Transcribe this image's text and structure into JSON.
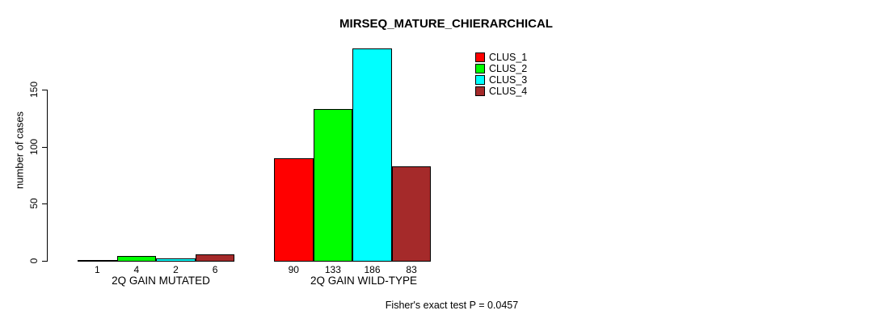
{
  "chart_data": {
    "type": "bar",
    "title": "MIRSEQ_MATURE_CHIERARCHICAL",
    "ylabel": "number of cases",
    "xlabel": "",
    "yticks": [
      0,
      50,
      100,
      150
    ],
    "ylim": [
      0,
      190
    ],
    "grid": false,
    "legend_position": "top-right",
    "categories": [
      "2Q GAIN MUTATED",
      "2Q GAIN WILD-TYPE"
    ],
    "series": [
      {
        "name": "CLUS_1",
        "color": "#ff0000",
        "values": [
          1,
          90
        ]
      },
      {
        "name": "CLUS_2",
        "color": "#00ff00",
        "values": [
          4,
          133
        ]
      },
      {
        "name": "CLUS_3",
        "color": "#00ffff",
        "values": [
          2,
          186
        ]
      },
      {
        "name": "CLUS_4",
        "color": "#a52a2a",
        "values": [
          6,
          83
        ]
      }
    ],
    "bar_value_labels": [
      [
        1,
        4,
        2,
        6
      ],
      [
        90,
        133,
        186,
        83
      ]
    ],
    "annotation": "Fisher's exact test P = 0.0457"
  }
}
